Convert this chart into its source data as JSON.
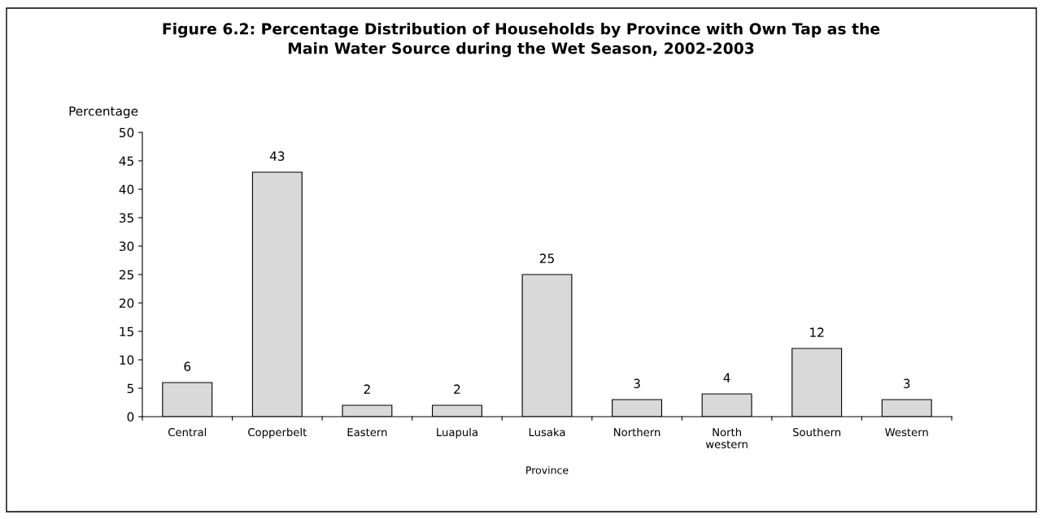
{
  "chart_data": {
    "type": "bar",
    "title": "Figure 6.2: Percentage Distribution of Households by Province with Own Tap as the\nMain Water Source during the Wet Season, 2002-2003",
    "ylabel": "Percentage",
    "xlabel": "Province",
    "categories": [
      "Central",
      "Copperbelt",
      "Eastern",
      "Luapula",
      "Lusaka",
      "Northern",
      "North western",
      "Southern",
      "Western"
    ],
    "values": [
      6,
      43,
      2,
      2,
      25,
      3,
      4,
      12,
      3
    ],
    "color": "#d9d9d9",
    "ylim": [
      0,
      50
    ],
    "yticks": [
      0,
      5,
      10,
      15,
      20,
      25,
      30,
      35,
      40,
      45,
      50
    ],
    "grid": false,
    "legend": false,
    "data_labels": true
  }
}
